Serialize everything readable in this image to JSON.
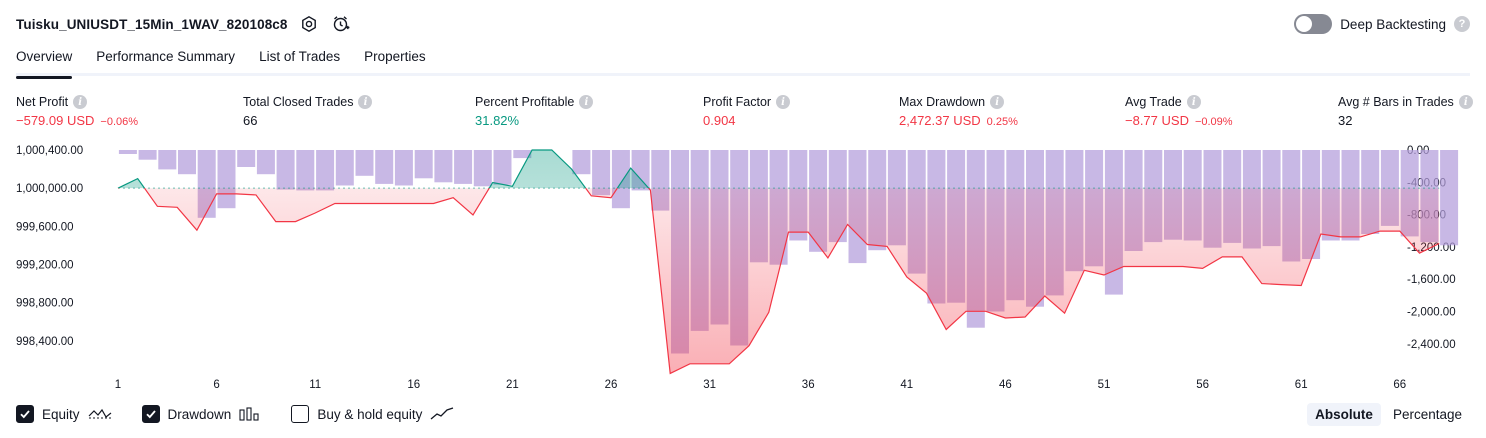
{
  "header": {
    "strategy_title": "Tuisku_UNIUSDT_15Min_1WAV_820108c8",
    "settings_icon": "settings-icon",
    "add_alert_icon": "alarm-clock-plus-icon",
    "deep_backtesting_label": "Deep Backtesting",
    "deep_backtesting_on": false
  },
  "tabs": [
    {
      "label": "Overview",
      "active": true
    },
    {
      "label": "Performance Summary",
      "active": false
    },
    {
      "label": "List of Trades",
      "active": false
    },
    {
      "label": "Properties",
      "active": false
    }
  ],
  "metrics": [
    {
      "label": "Net Profit",
      "value": "−579.09 USD",
      "pct": "−0.06%",
      "tone": "neg"
    },
    {
      "label": "Total Closed Trades",
      "value": "66",
      "pct": "",
      "tone": "neu"
    },
    {
      "label": "Percent Profitable",
      "value": "31.82%",
      "pct": "",
      "tone": "pos"
    },
    {
      "label": "Profit Factor",
      "value": "0.904",
      "pct": "",
      "tone": "neg"
    },
    {
      "label": "Max Drawdown",
      "value": "2,472.37 USD",
      "pct": "0.25%",
      "tone": "neg"
    },
    {
      "label": "Avg Trade",
      "value": "−8.77 USD",
      "pct": "−0.09%",
      "tone": "neg"
    },
    {
      "label": "Avg # Bars in Trades",
      "value": "32",
      "pct": "",
      "tone": "neu"
    }
  ],
  "chart_data": {
    "type": "line",
    "x_ticks": [
      "1",
      "6",
      "11",
      "16",
      "21",
      "26",
      "31",
      "36",
      "41",
      "46",
      "51",
      "56",
      "61",
      "66"
    ],
    "left_axis": {
      "ticks": [
        "1,000,400.00",
        "1,000,000.00",
        "999,600.00",
        "999,200.00",
        "998,800.00",
        "998,400.00"
      ],
      "ylim": [
        998200,
        1000400
      ],
      "baseline": 1000000
    },
    "right_axis": {
      "ticks": [
        "0.00",
        "-400.00",
        "-800.00",
        "-1,200.00",
        "-1,600.00",
        "-2,000.00",
        "-2,400.00"
      ],
      "ylim": [
        -2600,
        0
      ]
    },
    "series": [
      {
        "name": "Equity",
        "color_above": "#089981",
        "color_below": "#f23645",
        "values": [
          1000000,
          1000100,
          999810,
          999800,
          999560,
          999940,
          999940,
          999930,
          999650,
          999650,
          999740,
          999840,
          999840,
          999840,
          999840,
          999840,
          999840,
          999900,
          999720,
          1000060,
          1000020,
          1000400,
          1000400,
          1000200,
          999920,
          999900,
          1000210,
          999980,
          998060,
          998160,
          998160,
          998160,
          998350,
          998700,
          999540,
          999540,
          999270,
          999620,
          999410,
          999390,
          999070,
          998900,
          998520,
          998710,
          998710,
          998640,
          998650,
          998870,
          998690,
          999140,
          999090,
          999180,
          999180,
          999180,
          999180,
          999160,
          999280,
          999280,
          999000,
          998990,
          998980,
          999520,
          999490,
          999490,
          999550,
          999550,
          999320,
          999420
        ]
      },
      {
        "name": "Drawdown",
        "color": "#b39ddb",
        "values": [
          -50,
          -120,
          -240,
          -300,
          -840,
          -720,
          -210,
          -300,
          -490,
          -500,
          -500,
          -440,
          -320,
          -420,
          -440,
          -350,
          -400,
          -420,
          -450,
          -430,
          -100,
          0,
          0,
          -300,
          -560,
          -720,
          -500,
          -750,
          -2520,
          -2240,
          -2160,
          -2420,
          -1390,
          -1420,
          -1120,
          -1260,
          -1140,
          -1400,
          -1240,
          -1180,
          -1530,
          -1900,
          -1890,
          -2200,
          -2000,
          -1860,
          -1940,
          -1800,
          -1500,
          -1440,
          -1790,
          -1250,
          -1140,
          -1110,
          -1120,
          -1210,
          -1150,
          -1220,
          -1190,
          -1380,
          -1350,
          -1120,
          -1120,
          -1040,
          -940,
          -1070,
          -1140,
          -1180
        ]
      }
    ],
    "legend_position": "bottom-left"
  },
  "legend": {
    "items": [
      {
        "label": "Equity",
        "checked": true,
        "icon": "equity-line-icon"
      },
      {
        "label": "Drawdown",
        "checked": true,
        "icon": "drawdown-bars-icon"
      },
      {
        "label": "Buy & hold equity",
        "checked": false,
        "icon": "buy-hold-line-icon"
      }
    ]
  },
  "modes": [
    {
      "label": "Absolute",
      "active": true
    },
    {
      "label": "Percentage",
      "active": false
    }
  ]
}
